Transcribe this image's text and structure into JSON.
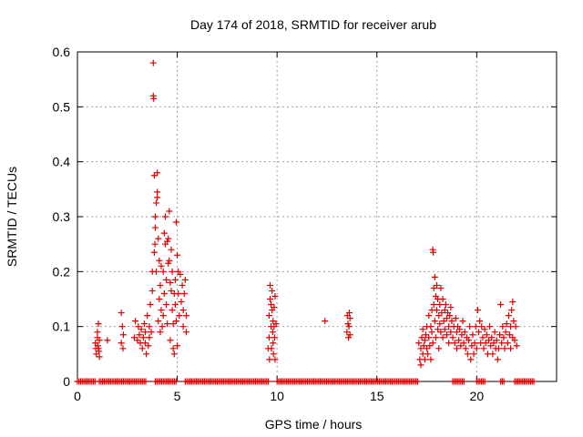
{
  "chart_data": {
    "type": "scatter",
    "title": "Day 174 of 2018, SRMTID for receiver arub",
    "xlabel": "GPS time / hours",
    "ylabel": "SRMTID / TECUs",
    "xlim": [
      0,
      24
    ],
    "ylim": [
      0,
      0.6
    ],
    "xticks": [
      0,
      5,
      10,
      15,
      20
    ],
    "xtick_labels": [
      "0",
      "5",
      "10",
      "15",
      "20"
    ],
    "yticks": [
      0,
      0.1,
      0.2,
      0.3,
      0.4,
      0.5,
      0.6
    ],
    "ytick_labels": [
      "0",
      "0.1",
      "0.2",
      "0.3",
      "0.4",
      "0.5",
      "0.6"
    ],
    "grid": true,
    "marker": "+",
    "color": "#e00000",
    "zero_band": [
      [
        0.0,
        0.95
      ],
      [
        1.1,
        3.45
      ],
      [
        3.9,
        5.0
      ],
      [
        5.4,
        9.6
      ],
      [
        10.0,
        17.1
      ],
      [
        18.8,
        19.4
      ],
      [
        20.0,
        20.4
      ],
      [
        21.2,
        21.4
      ],
      [
        21.9,
        22.9
      ]
    ],
    "series": [
      {
        "name": "SRMTID",
        "points": [
          [
            0.9,
            0.07
          ],
          [
            0.95,
            0.05
          ],
          [
            1.0,
            0.08
          ],
          [
            1.0,
            0.09
          ],
          [
            1.05,
            0.06
          ],
          [
            1.05,
            0.105
          ],
          [
            1.1,
            0.045
          ],
          [
            1.1,
            0.075
          ],
          [
            0.92,
            0.06
          ],
          [
            1.02,
            0.065
          ],
          [
            1.08,
            0.055
          ],
          [
            1.5,
            0.075
          ],
          [
            2.2,
            0.125
          ],
          [
            2.25,
            0.1
          ],
          [
            2.3,
            0.085
          ],
          [
            2.2,
            0.07
          ],
          [
            2.28,
            0.06
          ],
          [
            2.85,
            0.08
          ],
          [
            2.9,
            0.11
          ],
          [
            3.0,
            0.075
          ],
          [
            3.05,
            0.1
          ],
          [
            3.1,
            0.085
          ],
          [
            3.15,
            0.07
          ],
          [
            3.2,
            0.095
          ],
          [
            3.25,
            0.06
          ],
          [
            3.3,
            0.08
          ],
          [
            3.35,
            0.105
          ],
          [
            3.4,
            0.07
          ],
          [
            3.4,
            0.09
          ],
          [
            3.45,
            0.05
          ],
          [
            3.5,
            0.12
          ],
          [
            3.55,
            0.065
          ],
          [
            3.6,
            0.1
          ],
          [
            3.6,
            0.08
          ],
          [
            3.65,
            0.14
          ],
          [
            3.7,
            0.09
          ],
          [
            3.75,
            0.2
          ],
          [
            3.75,
            0.165
          ],
          [
            3.8,
            0.58
          ],
          [
            3.8,
            0.52
          ],
          [
            3.82,
            0.515
          ],
          [
            3.85,
            0.375
          ],
          [
            3.85,
            0.235
          ],
          [
            3.88,
            0.25
          ],
          [
            3.9,
            0.28
          ],
          [
            3.9,
            0.3
          ],
          [
            3.95,
            0.325
          ],
          [
            3.95,
            0.2
          ],
          [
            4.0,
            0.335
          ],
          [
            4.0,
            0.38
          ],
          [
            4.0,
            0.345
          ],
          [
            4.05,
            0.26
          ],
          [
            4.05,
            0.11
          ],
          [
            4.1,
            0.22
          ],
          [
            4.1,
            0.15
          ],
          [
            4.15,
            0.175
          ],
          [
            4.15,
            0.09
          ],
          [
            4.2,
            0.13
          ],
          [
            4.2,
            0.21
          ],
          [
            4.25,
            0.1
          ],
          [
            4.3,
            0.2
          ],
          [
            4.3,
            0.12
          ],
          [
            4.35,
            0.16
          ],
          [
            4.35,
            0.27
          ],
          [
            4.4,
            0.3
          ],
          [
            4.4,
            0.25
          ],
          [
            4.45,
            0.185
          ],
          [
            4.45,
            0.14
          ],
          [
            4.5,
            0.255
          ],
          [
            4.5,
            0.105
          ],
          [
            4.55,
            0.26
          ],
          [
            4.55,
            0.215
          ],
          [
            4.6,
            0.31
          ],
          [
            4.6,
            0.22
          ],
          [
            4.65,
            0.18
          ],
          [
            4.65,
            0.075
          ],
          [
            4.7,
            0.24
          ],
          [
            4.7,
            0.165
          ],
          [
            4.75,
            0.13
          ],
          [
            4.75,
            0.2
          ],
          [
            4.8,
            0.105
          ],
          [
            4.8,
            0.06
          ],
          [
            4.85,
            0.16
          ],
          [
            4.85,
            0.05
          ],
          [
            4.9,
            0.185
          ],
          [
            4.9,
            0.14
          ],
          [
            4.95,
            0.29
          ],
          [
            4.95,
            0.11
          ],
          [
            5.0,
            0.23
          ],
          [
            5.0,
            0.065
          ],
          [
            5.05,
            0.2
          ],
          [
            5.05,
            0.16
          ],
          [
            5.1,
            0.12
          ],
          [
            5.15,
            0.195
          ],
          [
            5.2,
            0.145
          ],
          [
            5.25,
            0.175
          ],
          [
            5.3,
            0.13
          ],
          [
            5.3,
            0.1
          ],
          [
            5.35,
            0.16
          ],
          [
            5.4,
            0.185
          ],
          [
            5.45,
            0.12
          ],
          [
            5.45,
            0.09
          ],
          [
            9.55,
            0.06
          ],
          [
            9.6,
            0.08
          ],
          [
            9.6,
            0.12
          ],
          [
            9.62,
            0.04
          ],
          [
            9.65,
            0.15
          ],
          [
            9.65,
            0.175
          ],
          [
            9.7,
            0.14
          ],
          [
            9.7,
            0.1
          ],
          [
            9.72,
            0.06
          ],
          [
            9.75,
            0.165
          ],
          [
            9.75,
            0.13
          ],
          [
            9.78,
            0.09
          ],
          [
            9.8,
            0.11
          ],
          [
            9.8,
            0.07
          ],
          [
            9.82,
            0.05
          ],
          [
            9.85,
            0.1
          ],
          [
            9.85,
            0.135
          ],
          [
            9.88,
            0.08
          ],
          [
            9.9,
            0.155
          ],
          [
            9.9,
            0.04
          ],
          [
            9.95,
            0.105
          ],
          [
            12.4,
            0.11
          ],
          [
            13.5,
            0.09
          ],
          [
            13.52,
            0.12
          ],
          [
            13.55,
            0.105
          ],
          [
            13.58,
            0.08
          ],
          [
            13.6,
            0.1
          ],
          [
            13.62,
            0.125
          ],
          [
            13.65,
            0.085
          ],
          [
            13.65,
            0.115
          ],
          [
            17.1,
            0.07
          ],
          [
            17.15,
            0.04
          ],
          [
            17.2,
            0.03
          ],
          [
            17.2,
            0.06
          ],
          [
            17.25,
            0.08
          ],
          [
            17.3,
            0.05
          ],
          [
            17.3,
            0.095
          ],
          [
            17.35,
            0.065
          ],
          [
            17.4,
            0.04
          ],
          [
            17.4,
            0.075
          ],
          [
            17.45,
            0.085
          ],
          [
            17.5,
            0.06
          ],
          [
            17.5,
            0.1
          ],
          [
            17.55,
            0.05
          ],
          [
            17.6,
            0.08
          ],
          [
            17.6,
            0.12
          ],
          [
            17.65,
            0.065
          ],
          [
            17.7,
            0.1
          ],
          [
            17.7,
            0.04
          ],
          [
            17.75,
            0.13
          ],
          [
            17.75,
            0.09
          ],
          [
            17.8,
            0.07
          ],
          [
            17.8,
            0.24
          ],
          [
            17.82,
            0.235
          ],
          [
            17.85,
            0.17
          ],
          [
            17.85,
            0.14
          ],
          [
            17.9,
            0.19
          ],
          [
            17.9,
            0.11
          ],
          [
            17.95,
            0.155
          ],
          [
            17.95,
            0.08
          ],
          [
            18.0,
            0.13
          ],
          [
            18.0,
            0.175
          ],
          [
            18.05,
            0.095
          ],
          [
            18.05,
            0.15
          ],
          [
            18.1,
            0.12
          ],
          [
            18.1,
            0.06
          ],
          [
            18.15,
            0.14
          ],
          [
            18.15,
            0.105
          ],
          [
            18.2,
            0.09
          ],
          [
            18.2,
            0.17
          ],
          [
            18.25,
            0.125
          ],
          [
            18.3,
            0.08
          ],
          [
            18.3,
            0.15
          ],
          [
            18.35,
            0.11
          ],
          [
            18.4,
            0.13
          ],
          [
            18.4,
            0.095
          ],
          [
            18.45,
            0.14
          ],
          [
            18.5,
            0.115
          ],
          [
            18.5,
            0.085
          ],
          [
            18.55,
            0.125
          ],
          [
            18.6,
            0.1
          ],
          [
            18.6,
            0.07
          ],
          [
            18.65,
            0.12
          ],
          [
            18.7,
            0.09
          ],
          [
            18.7,
            0.135
          ],
          [
            18.75,
            0.11
          ],
          [
            18.8,
            0.08
          ],
          [
            18.85,
            0.1
          ],
          [
            18.9,
            0.07
          ],
          [
            18.95,
            0.115
          ],
          [
            19.0,
            0.09
          ],
          [
            19.0,
            0.06
          ],
          [
            19.05,
            0.1
          ],
          [
            19.1,
            0.075
          ],
          [
            19.15,
            0.095
          ],
          [
            19.2,
            0.065
          ],
          [
            19.25,
            0.085
          ],
          [
            19.3,
            0.11
          ],
          [
            19.35,
            0.07
          ],
          [
            19.4,
            0.09
          ],
          [
            19.45,
            0.06
          ],
          [
            19.5,
            0.08
          ],
          [
            19.55,
            0.05
          ],
          [
            19.6,
            0.075
          ],
          [
            19.65,
            0.1
          ],
          [
            19.7,
            0.04
          ],
          [
            19.75,
            0.065
          ],
          [
            19.8,
            0.085
          ],
          [
            19.85,
            0.05
          ],
          [
            19.9,
            0.07
          ],
          [
            19.95,
            0.1
          ],
          [
            20.0,
            0.06
          ],
          [
            20.05,
            0.13
          ],
          [
            20.1,
            0.09
          ],
          [
            20.15,
            0.11
          ],
          [
            20.2,
            0.07
          ],
          [
            20.25,
            0.1
          ],
          [
            20.3,
            0.08
          ],
          [
            20.35,
            0.06
          ],
          [
            20.4,
            0.095
          ],
          [
            20.45,
            0.07
          ],
          [
            20.5,
            0.085
          ],
          [
            20.55,
            0.05
          ],
          [
            20.6,
            0.075
          ],
          [
            20.65,
            0.1
          ],
          [
            20.7,
            0.065
          ],
          [
            20.75,
            0.08
          ],
          [
            20.8,
            0.05
          ],
          [
            20.85,
            0.07
          ],
          [
            20.9,
            0.09
          ],
          [
            20.95,
            0.06
          ],
          [
            21.0,
            0.075
          ],
          [
            21.05,
            0.04
          ],
          [
            21.1,
            0.06
          ],
          [
            21.15,
            0.085
          ],
          [
            21.2,
            0.14
          ],
          [
            21.25,
            0.07
          ],
          [
            21.3,
            0.1
          ],
          [
            21.35,
            0.08
          ],
          [
            21.4,
            0.06
          ],
          [
            21.45,
            0.09
          ],
          [
            21.5,
            0.105
          ],
          [
            21.55,
            0.07
          ],
          [
            21.6,
            0.12
          ],
          [
            21.65,
            0.085
          ],
          [
            21.7,
            0.1
          ],
          [
            21.7,
            0.06
          ],
          [
            21.75,
            0.13
          ],
          [
            21.8,
            0.08
          ],
          [
            21.8,
            0.145
          ],
          [
            21.85,
            0.11
          ],
          [
            21.9,
            0.075
          ],
          [
            21.95,
            0.1
          ],
          [
            22.0,
            0.065
          ]
        ]
      }
    ]
  }
}
